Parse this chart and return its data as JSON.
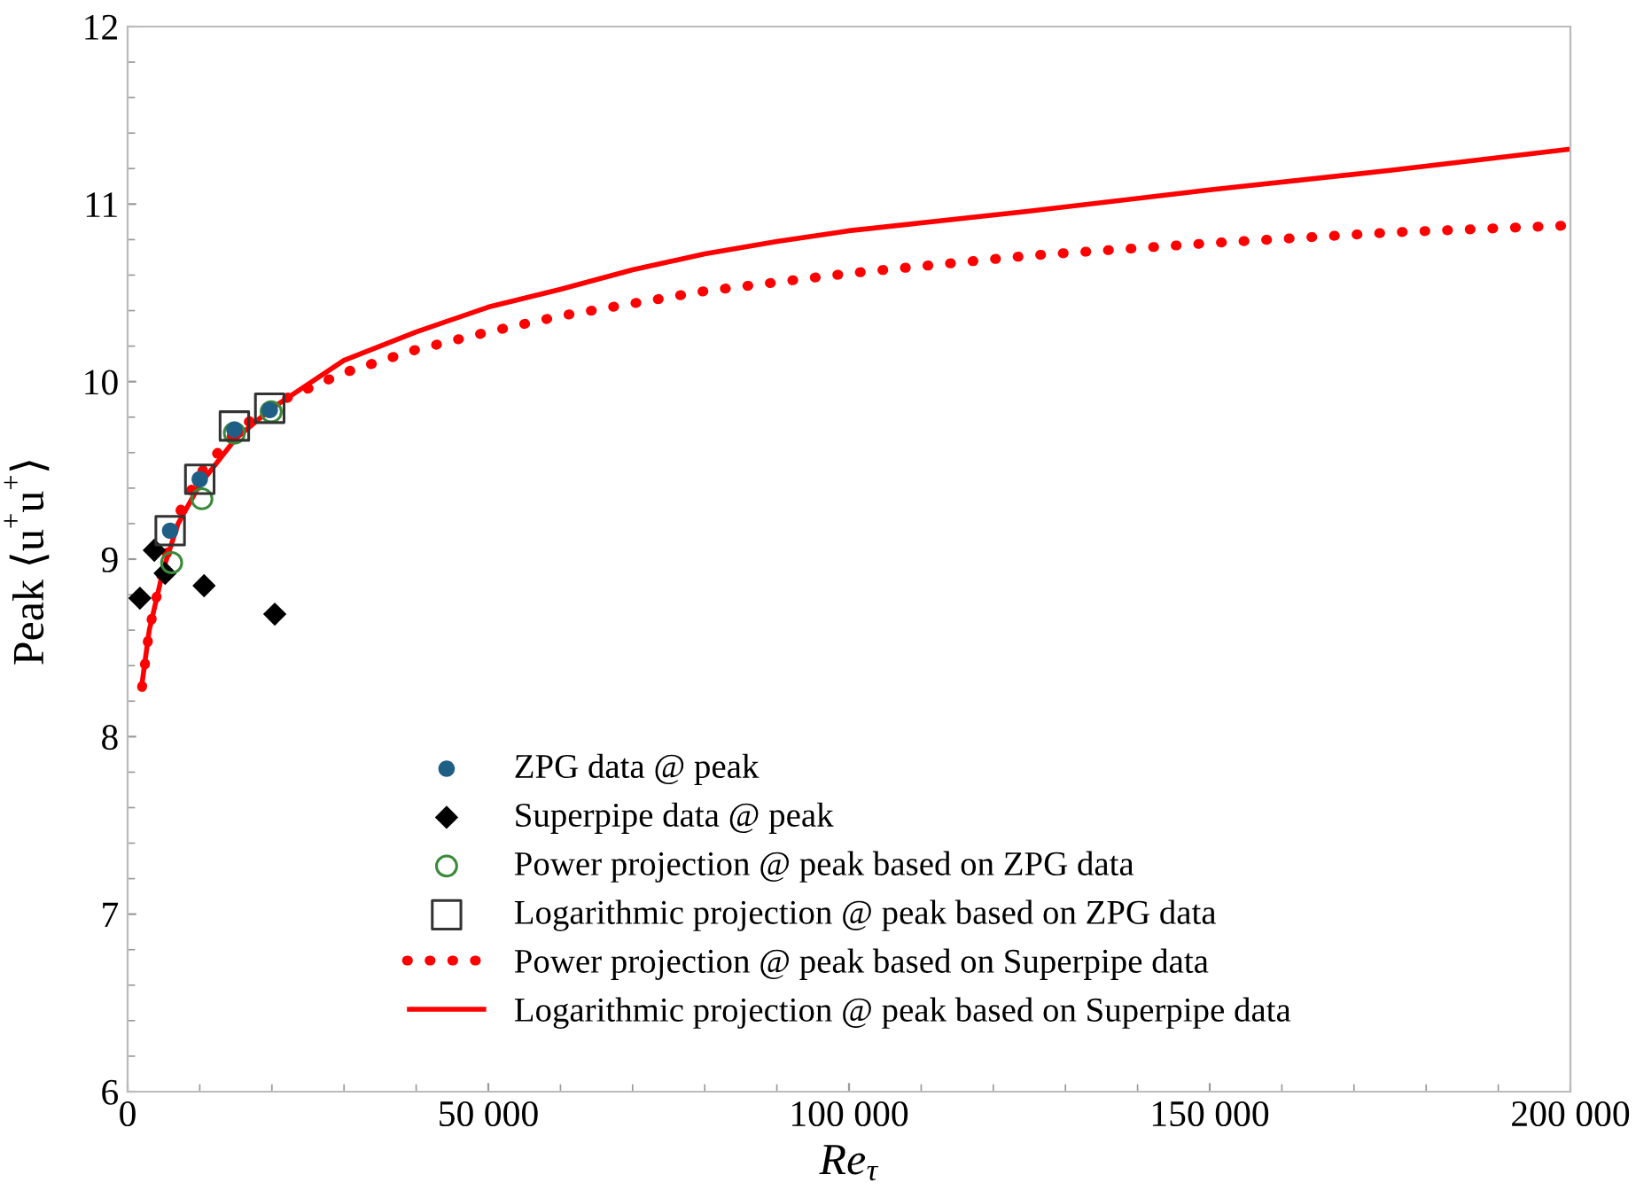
{
  "chart_data": {
    "type": "scatter",
    "xlabel": "Re$_{τ}$",
    "ylabel": "Peak ⟨u$^{+}$u$^{+}$⟩",
    "xlim": [
      0,
      200000
    ],
    "ylim": [
      6,
      12
    ],
    "xticks": [
      0,
      {
        "value": 50000,
        "label": "50 000"
      },
      {
        "value": 100000,
        "label": "100 000"
      },
      {
        "value": 150000,
        "label": "150 000"
      },
      {
        "value": 200000,
        "label": "200 000"
      }
    ],
    "yticks": [
      6,
      7,
      8,
      9,
      10,
      11,
      12
    ],
    "grid": false,
    "legend": "bottom",
    "series": [
      {
        "name": "ZPG data @ peak",
        "marker": "circle",
        "color": "#1f5f85",
        "x": [
          5900,
          10000,
          14800,
          19700
        ],
        "values": [
          9.16,
          9.45,
          9.73,
          9.84
        ]
      },
      {
        "name": "Superpipe data @ peak",
        "marker": "diamond",
        "color": "#000000",
        "x": [
          1700,
          3700,
          5200,
          10600,
          20400
        ],
        "values": [
          8.78,
          9.05,
          8.92,
          8.85,
          8.69
        ]
      },
      {
        "name": "Power projection @ peak based on ZPG data",
        "marker": "circle",
        "color": "#3a8a3a",
        "x": [
          6100,
          10300,
          14800,
          19900
        ],
        "values": [
          8.98,
          9.34,
          9.71,
          9.83
        ]
      },
      {
        "name": "Logarithmic projection @ peak based on ZPG data",
        "marker": "square",
        "color": "#333333",
        "x": [
          5900,
          10000,
          14800,
          19700
        ],
        "values": [
          9.16,
          9.45,
          9.75,
          9.85
        ]
      },
      {
        "name": "Power projection @ peak based on Superpipe data",
        "type": "line",
        "line_style": "dotted",
        "color": "#ff0000",
        "x": [
          2000,
          3000,
          5000,
          7000,
          10000,
          15000,
          20000,
          30000,
          40000,
          50000,
          60000,
          70000,
          80000,
          90000,
          100000,
          125000,
          150000,
          175000,
          200000
        ],
        "values": [
          8.28,
          8.6,
          8.97,
          9.25,
          9.48,
          9.72,
          9.87,
          10.05,
          10.18,
          10.28,
          10.37,
          10.44,
          10.51,
          10.56,
          10.61,
          10.71,
          10.78,
          10.84,
          10.88
        ]
      },
      {
        "name": "Logarithmic projection @ peak based on Superpipe data",
        "type": "line",
        "line_style": "solid",
        "color": "#ff0000",
        "x": [
          2000,
          3000,
          5000,
          7000,
          10000,
          15000,
          20000,
          30000,
          40000,
          50000,
          60000,
          70000,
          80000,
          90000,
          100000,
          125000,
          150000,
          175000,
          200000
        ],
        "values": [
          8.3,
          8.6,
          8.95,
          9.2,
          9.42,
          9.68,
          9.85,
          10.12,
          10.28,
          10.42,
          10.52,
          10.63,
          10.72,
          10.79,
          10.85,
          10.96,
          11.08,
          11.19,
          11.31
        ]
      }
    ]
  }
}
